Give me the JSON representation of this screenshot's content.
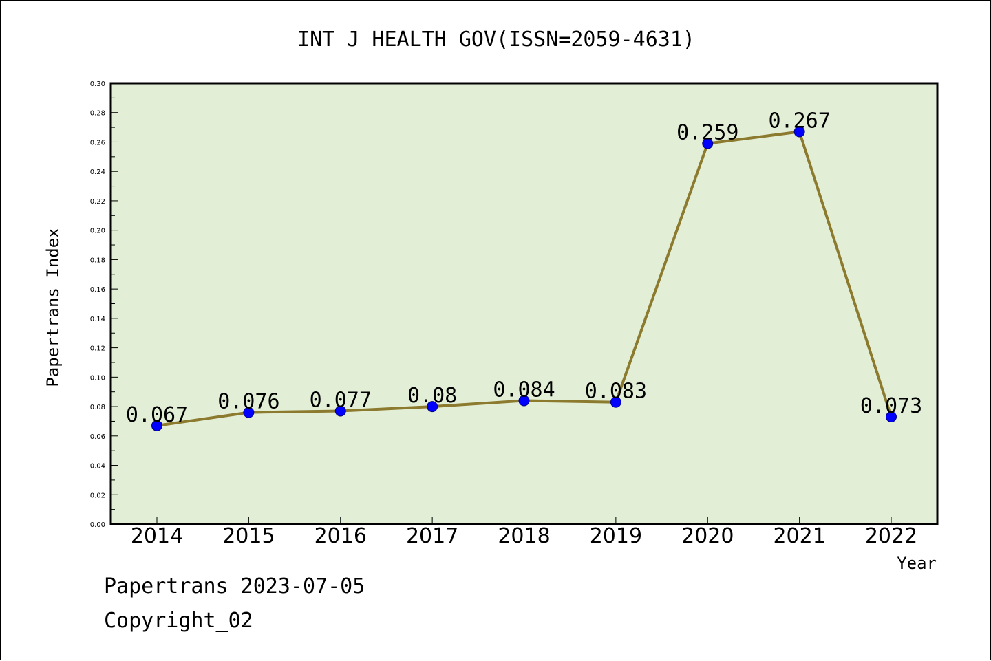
{
  "chart_data": {
    "type": "line",
    "title": "INT J HEALTH GOV(ISSN=2059-4631)",
    "xlabel": "Year",
    "ylabel": "Papertrans Index",
    "categories": [
      "2014",
      "2015",
      "2016",
      "2017",
      "2018",
      "2019",
      "2020",
      "2021",
      "2022"
    ],
    "series": [
      {
        "values": [
          0.067,
          0.076,
          0.077,
          0.08,
          0.084,
          0.083,
          0.259,
          0.267,
          0.073
        ],
        "labels": [
          "0.067",
          "0.076",
          "0.077",
          "0.08",
          "0.084",
          "0.083",
          "0.259",
          "0.267",
          "0.073"
        ]
      }
    ],
    "ylim": [
      0,
      0.3
    ],
    "yticks": [
      "0.00",
      "0.02",
      "0.04",
      "0.06",
      "0.08",
      "0.10",
      "0.12",
      "0.14",
      "0.16",
      "0.18",
      "0.20",
      "0.22",
      "0.24",
      "0.26",
      "0.28",
      "0.30"
    ],
    "grid": false,
    "legend": "none",
    "colors": {
      "plot_background": "#e2efd6",
      "line": "#8c7a2e",
      "marker": "#0000ff",
      "marker_edge": "#000080"
    }
  },
  "footer": {
    "source": "Papertrans 2023-07-05",
    "copyright": "Copyright_02"
  }
}
